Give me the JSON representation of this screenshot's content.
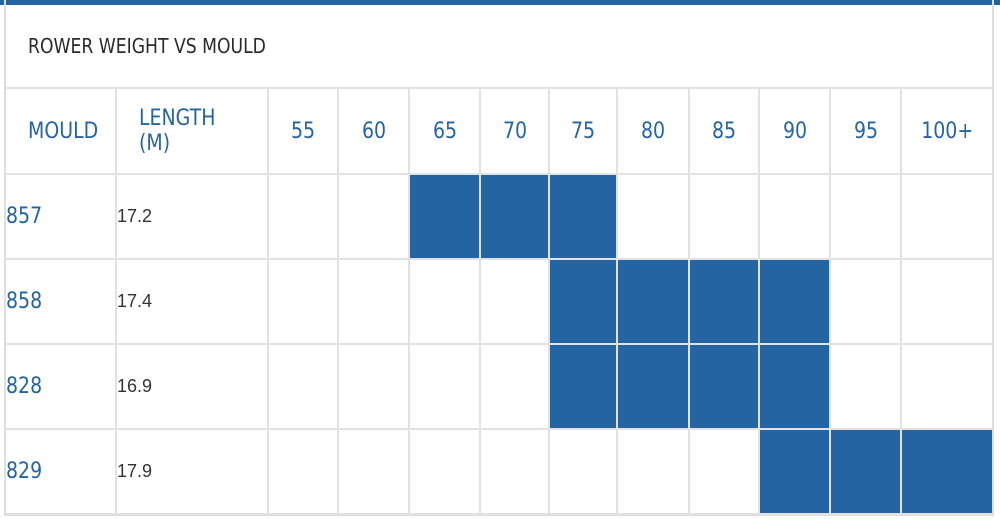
{
  "title": "ROWER WEIGHT VS MOULD",
  "headers": {
    "mould": "MOULD",
    "length": "LENGTH (M)",
    "weights": [
      "55",
      "60",
      "65",
      "70",
      "75",
      "80",
      "85",
      "90",
      "95",
      "100+"
    ]
  },
  "rows": [
    {
      "mould": "857",
      "length": "17.2",
      "range": [
        "65",
        "75"
      ]
    },
    {
      "mould": "858",
      "length": "17.4",
      "range": [
        "75",
        "90"
      ]
    },
    {
      "mould": "828",
      "length": "16.9",
      "range": [
        "75",
        "90"
      ]
    },
    {
      "mould": "829",
      "length": "17.9",
      "range": [
        "90",
        "100+"
      ]
    }
  ],
  "colors": {
    "accent": "#2464a2",
    "header_text": "#2564a4",
    "grid": "#e2e2e2"
  }
}
